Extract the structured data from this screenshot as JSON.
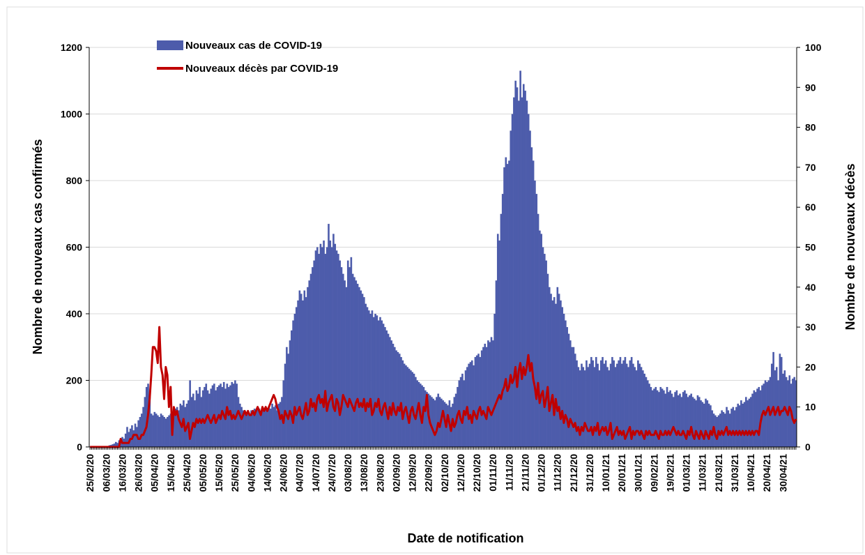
{
  "chart_data": {
    "type": "bar_line",
    "legend": "top-left",
    "y_label": "Nombre de nouveaux cas confirmés",
    "y2_label": "Nombre de nouveaux  décès",
    "x_label": "Date de notification",
    "ylim": [
      0,
      1200
    ],
    "yticks": [
      0,
      200,
      400,
      600,
      800,
      1000,
      1200
    ],
    "y2lim": [
      0,
      100
    ],
    "y2ticks": [
      0,
      10,
      20,
      30,
      40,
      50,
      60,
      70,
      80,
      90,
      100
    ],
    "grid": true,
    "categories": [
      "25/02/20",
      null,
      null,
      null,
      null,
      null,
      null,
      null,
      null,
      null,
      "06/03/20",
      null,
      null,
      null,
      null,
      null,
      null,
      null,
      null,
      null,
      "16/03/20",
      null,
      null,
      null,
      null,
      null,
      null,
      null,
      null,
      null,
      "26/03/20",
      null,
      null,
      null,
      null,
      null,
      null,
      null,
      null,
      null,
      "05/04/20",
      null,
      null,
      null,
      null,
      null,
      null,
      null,
      null,
      null,
      "15/04/20",
      null,
      null,
      null,
      null,
      null,
      null,
      null,
      null,
      null,
      "25/04/20",
      null,
      null,
      null,
      null,
      null,
      null,
      null,
      null,
      null,
      "05/05/20",
      null,
      null,
      null,
      null,
      null,
      null,
      null,
      null,
      null,
      "15/05/20",
      null,
      null,
      null,
      null,
      null,
      null,
      null,
      null,
      null,
      "25/05/20",
      null,
      null,
      null,
      null,
      null,
      null,
      null,
      null,
      null,
      "04/06/20",
      null,
      null,
      null,
      null,
      null,
      null,
      null,
      null,
      null,
      "14/06/20",
      null,
      null,
      null,
      null,
      null,
      null,
      null,
      null,
      null,
      "24/06/20",
      null,
      null,
      null,
      null,
      null,
      null,
      null,
      null,
      null,
      "04/07/20",
      null,
      null,
      null,
      null,
      null,
      null,
      null,
      null,
      null,
      "14/07/20",
      null,
      null,
      null,
      null,
      null,
      null,
      null,
      null,
      null,
      "24/07/20",
      null,
      null,
      null,
      null,
      null,
      null,
      null,
      null,
      null,
      "03/08/20",
      null,
      null,
      null,
      null,
      null,
      null,
      null,
      null,
      null,
      "13/08/20",
      null,
      null,
      null,
      null,
      null,
      null,
      null,
      null,
      null,
      "23/08/20",
      null,
      null,
      null,
      null,
      null,
      null,
      null,
      null,
      null,
      "02/09/20",
      null,
      null,
      null,
      null,
      null,
      null,
      null,
      null,
      null,
      "12/09/20",
      null,
      null,
      null,
      null,
      null,
      null,
      null,
      null,
      null,
      "22/09/20",
      null,
      null,
      null,
      null,
      null,
      null,
      null,
      null,
      null,
      "02/10/20",
      null,
      null,
      null,
      null,
      null,
      null,
      null,
      null,
      null,
      "12/10/20",
      null,
      null,
      null,
      null,
      null,
      null,
      null,
      null,
      null,
      "22/10/20",
      null,
      null,
      null,
      null,
      null,
      null,
      null,
      null,
      null,
      "01/11/20",
      null,
      null,
      null,
      null,
      null,
      null,
      null,
      null,
      null,
      "11/11/20",
      null,
      null,
      null,
      null,
      null,
      null,
      null,
      null,
      null,
      "21/11/20",
      null,
      null,
      null,
      null,
      null,
      null,
      null,
      null,
      null,
      "01/12/20",
      null,
      null,
      null,
      null,
      null,
      null,
      null,
      null,
      null,
      "11/12/20",
      null,
      null,
      null,
      null,
      null,
      null,
      null,
      null,
      null,
      "21/12/20",
      null,
      null,
      null,
      null,
      null,
      null,
      null,
      null,
      null,
      "31/12/20",
      null,
      null,
      null,
      null,
      null,
      null,
      null,
      null,
      null,
      "10/01/21",
      null,
      null,
      null,
      null,
      null,
      null,
      null,
      null,
      null,
      "20/01/21",
      null,
      null,
      null,
      null,
      null,
      null,
      null,
      null,
      null,
      "30/01/21",
      null,
      null,
      null,
      null,
      null,
      null,
      null,
      null,
      null,
      "09/02/21",
      null,
      null,
      null,
      null,
      null,
      null,
      null,
      null,
      null,
      "19/02/21",
      null,
      null,
      null,
      null,
      null,
      null,
      null,
      null,
      null,
      "01/03/21",
      null,
      null,
      null,
      null,
      null,
      null,
      null,
      null,
      null,
      "11/03/21",
      null,
      null,
      null,
      null,
      null,
      null,
      null,
      null,
      null,
      "21/03/21",
      null,
      null,
      null,
      null,
      null,
      null,
      null,
      null,
      null,
      "31/03/21",
      null,
      null,
      null,
      null,
      null,
      null,
      null,
      null,
      null,
      "10/04/21",
      null,
      null,
      null,
      null,
      null,
      null,
      null,
      null,
      null,
      "20/04/21",
      null,
      null,
      null,
      null,
      null,
      null,
      null,
      null,
      null,
      "30/04/21",
      null,
      null,
      null,
      null,
      null,
      null,
      null,
      null
    ],
    "series": [
      {
        "name": "Nouveaux cas de COVID-19",
        "type": "bar",
        "color": "#4d5cab",
        "values": [
          0,
          0,
          0,
          0,
          0,
          0,
          1,
          0,
          2,
          3,
          3,
          2,
          5,
          6,
          8,
          10,
          15,
          12,
          20,
          25,
          30,
          25,
          40,
          60,
          45,
          55,
          65,
          50,
          70,
          60,
          80,
          90,
          100,
          120,
          150,
          180,
          190,
          150,
          100,
          95,
          105,
          100,
          95,
          90,
          100,
          95,
          90,
          85,
          90,
          95,
          100,
          95,
          110,
          115,
          120,
          110,
          130,
          125,
          140,
          120,
          130,
          140,
          200,
          150,
          160,
          140,
          170,
          160,
          180,
          150,
          170,
          180,
          190,
          170,
          160,
          175,
          185,
          190,
          170,
          180,
          185,
          190,
          180,
          195,
          175,
          190,
          180,
          185,
          195,
          190,
          200,
          190,
          150,
          130,
          120,
          110,
          100,
          105,
          110,
          100,
          110,
          105,
          115,
          110,
          120,
          115,
          110,
          120,
          115,
          120,
          110,
          120,
          115,
          130,
          120,
          125,
          110,
          130,
          135,
          150,
          200,
          250,
          300,
          280,
          320,
          350,
          380,
          400,
          420,
          440,
          470,
          460,
          440,
          470,
          450,
          480,
          500,
          520,
          540,
          560,
          590,
          600,
          580,
          610,
          600,
          620,
          580,
          600,
          670,
          620,
          600,
          640,
          610,
          590,
          580,
          560,
          540,
          520,
          500,
          480,
          560,
          540,
          570,
          520,
          510,
          500,
          490,
          480,
          470,
          460,
          450,
          430,
          420,
          410,
          400,
          410,
          390,
          400,
          395,
          380,
          390,
          380,
          370,
          360,
          350,
          340,
          330,
          320,
          310,
          300,
          290,
          285,
          280,
          270,
          260,
          250,
          245,
          240,
          235,
          230,
          225,
          220,
          210,
          200,
          195,
          190,
          185,
          180,
          170,
          165,
          160,
          155,
          150,
          145,
          140,
          150,
          160,
          150,
          145,
          140,
          135,
          130,
          125,
          140,
          120,
          130,
          150,
          160,
          180,
          200,
          210,
          220,
          200,
          230,
          240,
          250,
          255,
          260,
          245,
          270,
          275,
          280,
          270,
          290,
          300,
          310,
          300,
          320,
          315,
          330,
          320,
          400,
          500,
          640,
          620,
          700,
          760,
          840,
          870,
          850,
          860,
          950,
          1000,
          1050,
          1100,
          1080,
          1040,
          1130,
          1050,
          1090,
          1070,
          1040,
          1000,
          950,
          900,
          860,
          800,
          760,
          700,
          650,
          640,
          600,
          580,
          560,
          520,
          480,
          460,
          440,
          450,
          430,
          480,
          460,
          440,
          420,
          400,
          380,
          360,
          340,
          320,
          300,
          300,
          280,
          260,
          240,
          230,
          250,
          240,
          230,
          260,
          240,
          250,
          270,
          260,
          240,
          270,
          250,
          230,
          260,
          270,
          250,
          260,
          240,
          230,
          250,
          270,
          260,
          240,
          250,
          260,
          270,
          250,
          260,
          270,
          250,
          240,
          260,
          270,
          250,
          240,
          230,
          260,
          250,
          240,
          230,
          220,
          210,
          200,
          190,
          180,
          170,
          175,
          180,
          170,
          165,
          180,
          175,
          170,
          160,
          180,
          165,
          170,
          160,
          150,
          165,
          170,
          155,
          160,
          150,
          165,
          170,
          160,
          150,
          155,
          160,
          150,
          145,
          140,
          155,
          150,
          140,
          135,
          130,
          145,
          140,
          130,
          125,
          110,
          100,
          95,
          90,
          95,
          100,
          110,
          105,
          100,
          120,
          110,
          100,
          115,
          120,
          110,
          120,
          130,
          125,
          140,
          130,
          135,
          150,
          140,
          145,
          150,
          160,
          170,
          165,
          175,
          180,
          170,
          185,
          190,
          200,
          195,
          200,
          210,
          250,
          285,
          230,
          240,
          200,
          280,
          270,
          220,
          230,
          210,
          200,
          215,
          190,
          205,
          210,
          200
        ]
      },
      {
        "name": "Nouveaux décès par COVID-19",
        "type": "line",
        "axis": "y2",
        "color": "#c00000",
        "values": [
          0,
          0,
          0,
          0,
          0,
          0,
          0,
          0,
          0,
          0,
          0,
          0,
          0,
          0,
          0,
          0,
          0,
          0,
          0,
          2,
          1,
          1,
          1,
          1,
          1,
          2,
          2,
          3,
          3,
          3,
          2,
          2,
          3,
          3,
          4,
          5,
          8,
          12,
          18,
          25,
          25,
          24,
          21,
          30,
          20,
          18,
          12,
          20,
          18,
          10,
          15,
          3,
          10,
          8,
          9,
          7,
          6,
          5,
          7,
          4,
          5,
          6,
          2,
          4,
          6,
          5,
          7,
          6,
          7,
          6,
          7,
          6,
          7,
          8,
          7,
          6,
          7,
          8,
          6,
          7,
          8,
          7,
          9,
          8,
          7,
          10,
          8,
          9,
          7,
          8,
          7,
          8,
          9,
          8,
          7,
          8,
          9,
          8,
          9,
          8,
          8,
          9,
          8,
          9,
          10,
          9,
          8,
          10,
          9,
          10,
          9,
          10,
          11,
          12,
          13,
          12,
          10,
          9,
          7,
          8,
          6,
          9,
          8,
          7,
          9,
          8,
          6,
          10,
          8,
          9,
          10,
          8,
          7,
          9,
          11,
          8,
          9,
          12,
          10,
          11,
          9,
          12,
          13,
          11,
          12,
          10,
          14,
          9,
          11,
          12,
          13,
          10,
          9,
          12,
          11,
          8,
          10,
          13,
          12,
          11,
          10,
          12,
          11,
          10,
          9,
          11,
          12,
          10,
          11,
          10,
          12,
          9,
          11,
          10,
          12,
          8,
          9,
          11,
          10,
          12,
          9,
          8,
          10,
          11,
          9,
          7,
          10,
          8,
          11,
          9,
          8,
          10,
          9,
          11,
          7,
          9,
          10,
          8,
          6,
          9,
          10,
          8,
          7,
          9,
          11,
          8,
          6,
          10,
          9,
          13,
          8,
          6,
          5,
          4,
          3,
          4,
          6,
          5,
          7,
          9,
          7,
          5,
          8,
          6,
          4,
          7,
          5,
          6,
          8,
          9,
          7,
          6,
          9,
          8,
          10,
          7,
          8,
          6,
          9,
          8,
          7,
          9,
          10,
          8,
          9,
          8,
          7,
          10,
          9,
          8,
          9,
          10,
          11,
          12,
          13,
          12,
          14,
          15,
          17,
          14,
          15,
          18,
          16,
          17,
          20,
          15,
          19,
          21,
          17,
          20,
          18,
          20,
          23,
          19,
          21,
          17,
          15,
          12,
          16,
          11,
          13,
          14,
          10,
          12,
          15,
          9,
          11,
          13,
          8,
          12,
          9,
          10,
          7,
          9,
          6,
          8,
          7,
          5,
          7,
          6,
          5,
          6,
          4,
          5,
          3,
          5,
          4,
          6,
          5,
          4,
          4,
          5,
          3,
          5,
          4,
          6,
          3,
          4,
          5,
          4,
          5,
          3,
          4,
          6,
          2,
          3,
          4,
          5,
          3,
          4,
          3,
          4,
          2,
          3,
          4,
          5,
          2,
          4,
          3,
          4,
          4,
          3,
          4,
          3,
          2,
          4,
          3,
          4,
          3,
          3,
          3,
          4,
          3,
          2,
          4,
          3,
          3,
          4,
          3,
          4,
          3,
          4,
          5,
          4,
          3,
          4,
          3,
          3,
          4,
          3,
          2,
          4,
          3,
          5,
          3,
          2,
          4,
          3,
          2,
          4,
          3,
          2,
          4,
          3,
          2,
          4,
          3,
          5,
          3,
          2,
          4,
          3,
          4,
          3,
          4,
          5,
          3,
          4,
          3,
          4,
          3,
          4,
          3,
          4,
          3,
          4,
          3,
          4,
          3,
          4,
          3,
          4,
          3,
          4,
          4,
          3,
          6,
          8,
          9,
          8,
          9,
          10,
          8,
          9,
          10,
          8,
          9,
          10,
          8,
          9,
          9,
          10,
          9,
          8,
          10,
          9,
          7,
          6,
          7
        ]
      }
    ]
  }
}
